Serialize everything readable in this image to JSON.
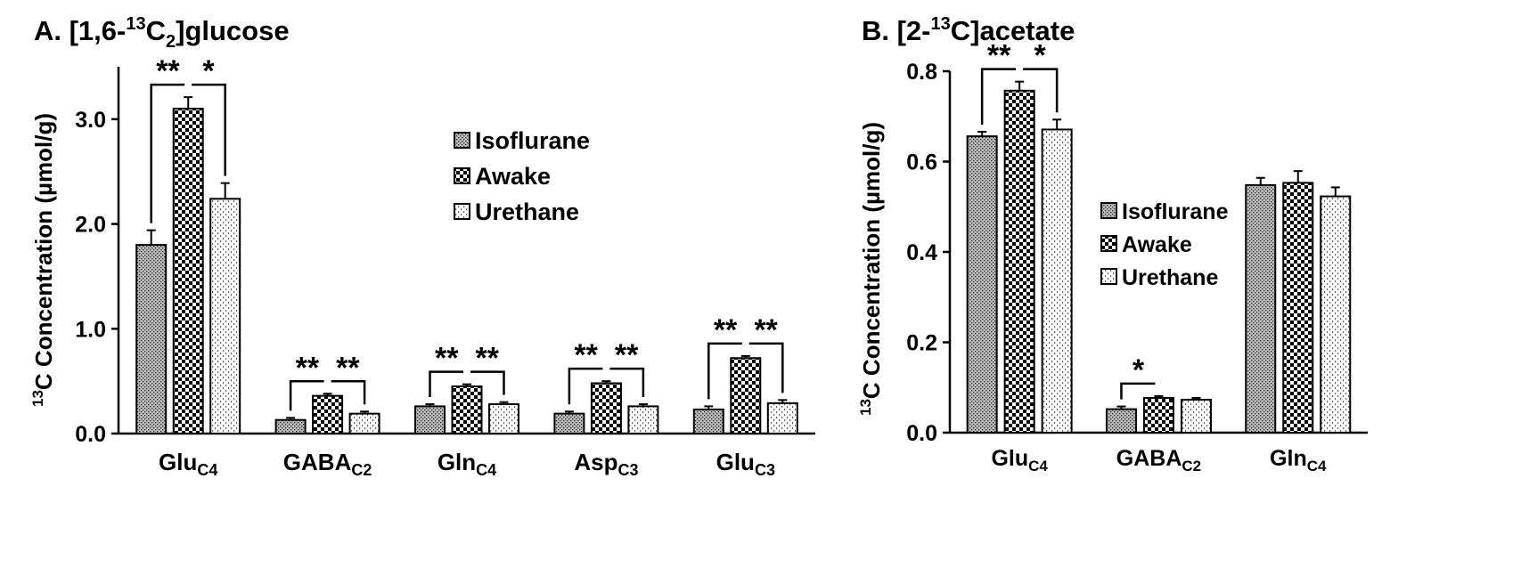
{
  "chart_data": [
    {
      "panel": "A",
      "type": "bar",
      "title": {
        "prefix": "A. [1,6-",
        "sup": "13",
        "mid": "C",
        "sub": "2",
        "suffix": "]glucose"
      },
      "ylabel": {
        "sup": "13",
        "text": "C Concentration (µmol/g)"
      },
      "ylim": [
        0,
        3.5
      ],
      "yticks": [
        "0.0",
        "1.0",
        "2.0",
        "3.0"
      ],
      "categories": [
        {
          "base": "Glu",
          "sub": "C4"
        },
        {
          "base": "GABA",
          "sub": "C2"
        },
        {
          "base": "Gln",
          "sub": "C4"
        },
        {
          "base": "Asp",
          "sub": "C3"
        },
        {
          "base": "Glu",
          "sub": "C3"
        }
      ],
      "series": [
        {
          "name": "Isoflurane",
          "pattern": "iso",
          "values": [
            1.8,
            0.13,
            0.26,
            0.19,
            0.23
          ],
          "errors": [
            0.14,
            0.02,
            0.02,
            0.02,
            0.03
          ]
        },
        {
          "name": "Awake",
          "pattern": "awake",
          "values": [
            3.1,
            0.36,
            0.45,
            0.48,
            0.72
          ],
          "errors": [
            0.11,
            0.02,
            0.02,
            0.02,
            0.02
          ]
        },
        {
          "name": "Urethane",
          "pattern": "ure",
          "values": [
            2.24,
            0.19,
            0.28,
            0.26,
            0.29
          ],
          "errors": [
            0.15,
            0.02,
            0.02,
            0.02,
            0.03
          ]
        }
      ],
      "significance": [
        {
          "category": 0,
          "left": "**",
          "right": "*"
        },
        {
          "category": 1,
          "left": "**",
          "right": "**"
        },
        {
          "category": 2,
          "left": "**",
          "right": "**"
        },
        {
          "category": 3,
          "left": "**",
          "right": "**"
        },
        {
          "category": 4,
          "left": "**",
          "right": "**"
        }
      ],
      "legend_position": "upper-middle"
    },
    {
      "panel": "B",
      "type": "bar",
      "title": {
        "prefix": "B. [2-",
        "sup": "13",
        "mid": "C]acetate",
        "sub": "",
        "suffix": ""
      },
      "ylabel": {
        "sup": "13",
        "text": "C Concentration (µmol/g)"
      },
      "ylim": [
        0,
        0.8
      ],
      "yticks": [
        "0.0",
        "0.2",
        "0.4",
        "0.6",
        "0.8"
      ],
      "categories": [
        {
          "base": "Glu",
          "sub": "C4"
        },
        {
          "base": "GABA",
          "sub": "C2"
        },
        {
          "base": "Gln",
          "sub": "C4"
        }
      ],
      "series": [
        {
          "name": "Isoflurane",
          "pattern": "iso",
          "values": [
            0.656,
            0.052,
            0.548
          ],
          "errors": [
            0.01,
            0.006,
            0.016
          ]
        },
        {
          "name": "Awake",
          "pattern": "awake",
          "values": [
            0.757,
            0.077,
            0.553
          ],
          "errors": [
            0.02,
            0.004,
            0.026
          ]
        },
        {
          "name": "Urethane",
          "pattern": "ure",
          "values": [
            0.671,
            0.073,
            0.523
          ],
          "errors": [
            0.022,
            0.004,
            0.02
          ]
        }
      ],
      "significance": [
        {
          "category": 0,
          "left": "**",
          "right": "*"
        },
        {
          "category": 1,
          "left": "*",
          "right": ""
        }
      ],
      "legend_position": "middle-right"
    }
  ]
}
